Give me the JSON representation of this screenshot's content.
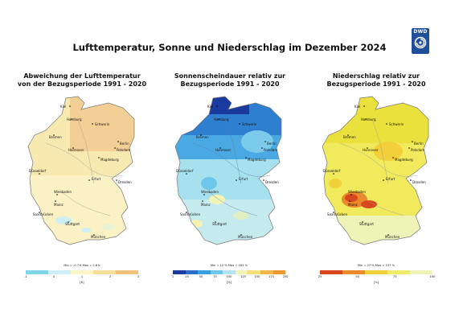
{
  "title": "Lufttemperatur, Sonne und Niederschlag im Dezember 2024",
  "logo": {
    "text": "DWD",
    "icon": "dwd-swirl-logo"
  },
  "panels": [
    {
      "title_line1": "Abweichung der Lufttemperatur",
      "title_line2": "von der Bezugsperiode 1991 - 2020",
      "minmax": "Min = -0.7 K     Max = 2.8 K",
      "ticks": [
        "-1",
        "0",
        "1",
        "2",
        "3"
      ],
      "unit": "[K]",
      "colors": [
        "#7fd6ec",
        "#cdeff5",
        "#fbf6c8",
        "#f6df99",
        "#f2c27a"
      ]
    },
    {
      "title_line1": "Sonnenscheindauer relativ zur",
      "title_line2": "Bezugsperiode 1991 - 2020",
      "minmax": "Min = 12 %     Max = 182 %",
      "ticks": [
        "1",
        "25",
        "50",
        "75",
        "100",
        "125",
        "150",
        "175",
        "200"
      ],
      "unit": "[%]",
      "colors": [
        "#1a3aa0",
        "#2a6fc7",
        "#3a9fe0",
        "#6ec6ea",
        "#b4e4ef",
        "#f3f3b4",
        "#f6df7d",
        "#f2b64a",
        "#e99a2e"
      ]
    },
    {
      "title_line1": "Niederschlag relativ zur",
      "title_line2": "Bezugsperiode 1991 - 2020",
      "minmax": "Min = 27 %     Max = 137 %",
      "ticks": [
        "25",
        "50",
        "75",
        "100"
      ],
      "unit": "[%]",
      "colors": [
        "#d9471f",
        "#ea8a2a",
        "#f3cf3a",
        "#f0ec6a",
        "#eef3b8"
      ]
    }
  ],
  "cities": [
    "Kiel",
    "Hamburg",
    "Schwerin",
    "Bremen",
    "Hannover",
    "Berlin",
    "Potsdam",
    "Magdeburg",
    "Düsseldorf",
    "Erfurt",
    "Dresden",
    "Wiesbaden",
    "Mainz",
    "Saarbrücken",
    "Stuttgart",
    "München"
  ]
}
